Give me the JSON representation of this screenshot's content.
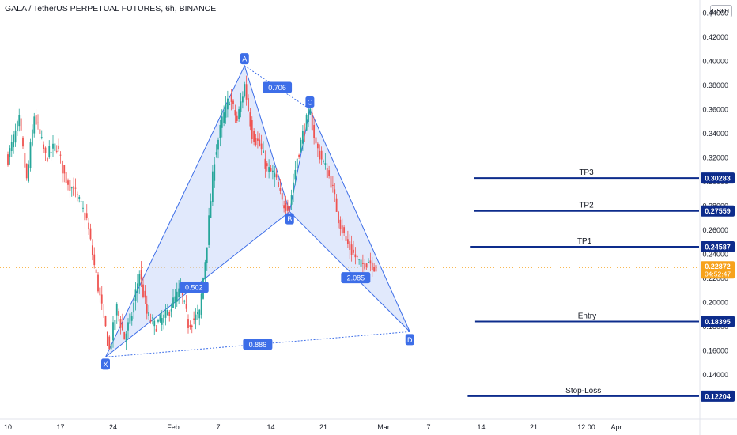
{
  "header": {
    "title": "GALA / TetherUS PERPETUAL FUTURES, 6h, BINANCE"
  },
  "price_scale": {
    "currency": "USDT",
    "countdown": "04:52:47"
  },
  "colors": {
    "up_candle": "#26a69a",
    "down_candle": "#ef5350",
    "pattern_line": "#3d6ee8",
    "pattern_fill": "#c9d7fa",
    "level_line": "#0d2c8c",
    "current_price_badge": "#f7a21b",
    "axis_text": "#131722"
  },
  "chart_data": {
    "type": "candlestick",
    "symbol": "GALA / TetherUS PERPETUAL FUTURES",
    "interval": "6h",
    "exchange": "BINANCE",
    "y_axis": {
      "side": "right",
      "ticks": [
        0.14,
        0.16,
        0.18,
        0.2,
        0.22,
        0.24,
        0.26,
        0.28,
        0.3,
        0.32,
        0.34,
        0.36,
        0.38,
        0.4,
        0.42,
        0.44
      ],
      "tick_labels": [
        "0.14000",
        "0.16000",
        "0.18000",
        "0.20000",
        "0.22000",
        "0.24000",
        "0.26000",
        "0.28000",
        "0.30000",
        "0.32000",
        "0.34000",
        "0.36000",
        "0.38000",
        "0.40000",
        "0.42000",
        "0.44000"
      ],
      "range": [
        0.09,
        0.45
      ]
    },
    "x_axis": {
      "tick_labels": [
        "10",
        "17",
        "24",
        "Feb",
        "7",
        "14",
        "21",
        "Mar",
        "7",
        "14",
        "21",
        "12:00",
        "Apr"
      ],
      "tick_positions_days": [
        -22,
        -15,
        -8,
        0,
        6,
        13,
        20,
        28,
        34,
        41,
        48,
        55,
        59
      ]
    },
    "current_price": {
      "value": 0.22872,
      "label": "0.22872"
    },
    "harmonic_pattern": {
      "points": [
        {
          "name": "X",
          "day": -9,
          "price": 0.1545
        },
        {
          "name": "A",
          "day": 9.5,
          "price": 0.396
        },
        {
          "name": "B",
          "day": 15.5,
          "price": 0.275
        },
        {
          "name": "C",
          "day": 18.2,
          "price": 0.36
        },
        {
          "name": "D",
          "day": 31.5,
          "price": 0.1755
        }
      ],
      "ratios": [
        {
          "label": "0.502",
          "between": "X-B"
        },
        {
          "label": "0.706",
          "between": "A-C"
        },
        {
          "label": "2.085",
          "between": "B-D"
        },
        {
          "label": "0.886",
          "between": "X-D"
        }
      ]
    },
    "levels": [
      {
        "name": "TP3",
        "price": 0.30283,
        "label": "0.30283",
        "start_day": 40.0
      },
      {
        "name": "TP2",
        "price": 0.27559,
        "label": "0.27559",
        "start_day": 40.0
      },
      {
        "name": "TP1",
        "price": 0.24587,
        "label": "0.24587",
        "start_day": 39.5
      },
      {
        "name": "Entry",
        "price": 0.18395,
        "label": "0.18395",
        "start_day": 40.2
      },
      {
        "name": "Stop-Loss",
        "price": 0.12204,
        "label": "0.12204",
        "start_day": 39.2
      }
    ],
    "price_path": [
      [
        -22,
        0.32
      ],
      [
        -20.5,
        0.35
      ],
      [
        -19.5,
        0.3
      ],
      [
        -18.5,
        0.355
      ],
      [
        -17,
        0.32
      ],
      [
        -15.5,
        0.33
      ],
      [
        -14.5,
        0.305
      ],
      [
        -13,
        0.29
      ],
      [
        -11.5,
        0.268
      ],
      [
        -10.5,
        0.23
      ],
      [
        -9.5,
        0.195
      ],
      [
        -8.5,
        0.16
      ],
      [
        -7.5,
        0.195
      ],
      [
        -6.5,
        0.17
      ],
      [
        -5.5,
        0.19
      ],
      [
        -4.5,
        0.225
      ],
      [
        -3.5,
        0.19
      ],
      [
        -2.5,
        0.18
      ],
      [
        -1,
        0.188
      ],
      [
        0,
        0.2
      ],
      [
        1,
        0.21
      ],
      [
        2,
        0.182
      ],
      [
        3.5,
        0.19
      ],
      [
        4.5,
        0.25
      ],
      [
        5.5,
        0.32
      ],
      [
        6.5,
        0.35
      ],
      [
        7.5,
        0.37
      ],
      [
        8.5,
        0.35
      ],
      [
        9.5,
        0.38
      ],
      [
        10.5,
        0.34
      ],
      [
        11.5,
        0.33
      ],
      [
        12.5,
        0.31
      ],
      [
        13.5,
        0.305
      ],
      [
        14.5,
        0.282
      ],
      [
        15.5,
        0.28
      ],
      [
        16.5,
        0.32
      ],
      [
        17.5,
        0.345
      ],
      [
        18.2,
        0.358
      ],
      [
        19,
        0.33
      ],
      [
        20,
        0.315
      ],
      [
        21,
        0.3
      ],
      [
        22,
        0.27
      ],
      [
        23,
        0.25
      ],
      [
        24,
        0.24
      ],
      [
        25,
        0.23
      ],
      [
        26,
        0.235
      ],
      [
        27,
        0.228
      ]
    ]
  }
}
